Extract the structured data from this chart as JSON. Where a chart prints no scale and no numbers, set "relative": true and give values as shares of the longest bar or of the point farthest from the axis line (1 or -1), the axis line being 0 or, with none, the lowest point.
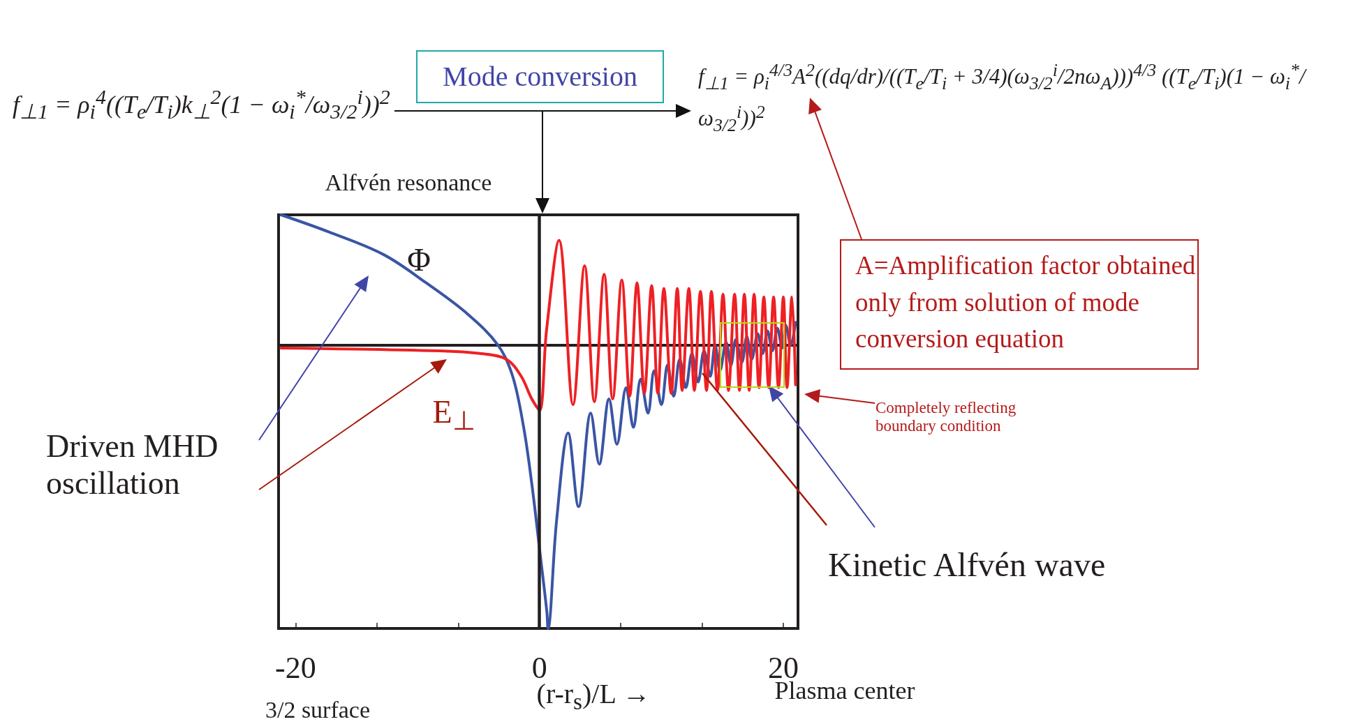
{
  "chart_data": {
    "type": "line",
    "relative": true,
    "xlabel": "(r-r$_{s}$)/L →",
    "xlim": [
      -21.4,
      21.2
    ],
    "xticks": [
      -20,
      {
        "value": -13.33,
        "label": null
      },
      {
        "value": -6.67,
        "label": null
      },
      0,
      {
        "value": 6.67,
        "label": null
      },
      {
        "value": 13.33,
        "label": null
      },
      20
    ],
    "grid": false,
    "legend": false,
    "marker": "none",
    "line_style": "solid",
    "series": [
      {
        "name": "Φ",
        "color": "#3a55a4",
        "x": [
          -21.2,
          -17.3,
          -12.8,
          -9.3,
          -5.9,
          -3.4,
          -2.2,
          -1.3,
          -0.63,
          0.06,
          0.6,
          0.7,
          1.4,
          2.35,
          3.2,
          4.2,
          4.9,
          5.7,
          6.35,
          7.1,
          7.7,
          8.3,
          8.9,
          9.4,
          10.0,
          10.5,
          11.0,
          11.5,
          12.0,
          12.5,
          13.0,
          13.5,
          14.0,
          14.4,
          14.8,
          15.3,
          15.7,
          16.1,
          16.6,
          17.0,
          17.4,
          17.9,
          18.3,
          18.7,
          19.1,
          19.5,
          19.9,
          20.2,
          20.6,
          21.0
        ],
        "values": [
          0.46,
          0.4,
          0.32,
          0.22,
          0.11,
          0,
          -0.11,
          -0.29,
          -0.49,
          -0.74,
          -0.94,
          -1,
          -0.62,
          -0.31,
          -0.57,
          -0.24,
          -0.42,
          -0.19,
          -0.35,
          -0.15,
          -0.29,
          -0.12,
          -0.24,
          -0.09,
          -0.21,
          -0.07,
          -0.18,
          -0.05,
          -0.15,
          -0.03,
          -0.13,
          -0.02,
          -0.11,
          0,
          -0.09,
          0.01,
          -0.07,
          0.02,
          -0.06,
          0.03,
          -0.05,
          0.04,
          -0.03,
          0.05,
          -0.02,
          0.06,
          -0.01,
          0.07,
          0,
          0.08
        ]
      },
      {
        "name": "E$_{⊥}$",
        "color": "#ee2024",
        "x": [
          -21.2,
          -8.2,
          -4.75,
          -2.7,
          -1.5,
          -0.63,
          0,
          0.57,
          1.6,
          2.75,
          3.7,
          4.5,
          5.3,
          6.0,
          6.75,
          7.4,
          8.0,
          8.6,
          9.2,
          9.7,
          10.2,
          10.8,
          11.3,
          11.7,
          12.25,
          12.7,
          13.2,
          13.7,
          14.1,
          14.6,
          15.05,
          15.5,
          16.0,
          16.4,
          16.8,
          17.2,
          17.6,
          18.0,
          18.4,
          18.8,
          19.2,
          19.6,
          20.0,
          20.3,
          20.7,
          21.0
        ],
        "values": [
          -0.01,
          -0.02,
          -0.03,
          -0.05,
          -0.11,
          -0.19,
          -0.23,
          0.05,
          0.37,
          -0.21,
          0.28,
          -0.2,
          0.25,
          -0.19,
          0.23,
          -0.18,
          0.22,
          -0.17,
          0.21,
          -0.17,
          0.2,
          -0.17,
          0.2,
          -0.16,
          0.2,
          -0.16,
          0.19,
          -0.16,
          0.19,
          -0.16,
          0.18,
          -0.16,
          0.18,
          -0.16,
          0.18,
          -0.16,
          0.18,
          -0.15,
          0.17,
          -0.15,
          0.17,
          -0.15,
          0.17,
          -0.15,
          0.17,
          -0.14
        ]
      }
    ],
    "ref_lines": [
      {
        "axis": "x",
        "value": 0,
        "color": "#231f20"
      }
    ],
    "annotations": [
      "f$_{⊥1}$ = ρ$_{i}$$^{4}$((T$_{e}$/T$_{i}$)k$_{⊥}$$^{2}$(1 − ω$_{i}$$^{*}$/ω$_{3/2}$$^{i}$))$^{2}$",
      "Mode conversion",
      "f$_{⊥1}$ = ρ$_{i}$$^{4/3}$A$^{2}$((dq/dr)/((T$_{e}$/T$_{i}$ + 3/4)(ω$_{3/2}$$^{i}$/2nω$_{A}$)))$^{4/3}$ ((T$_{e}$/T$_{i}$)(1 − ω$_{i}$$^{*}$/ω$_{3/2}$$^{i}$))$^{2}$",
      "Alfvén resonance",
      "Driven MHD oscillation",
      "A=Amplification factor obtained only from solution of mode conversion equation",
      "Completely reflecting boundary condition",
      "Kinetic Alfvén wave",
      "3/2 surface",
      "Plasma center"
    ]
  }
}
